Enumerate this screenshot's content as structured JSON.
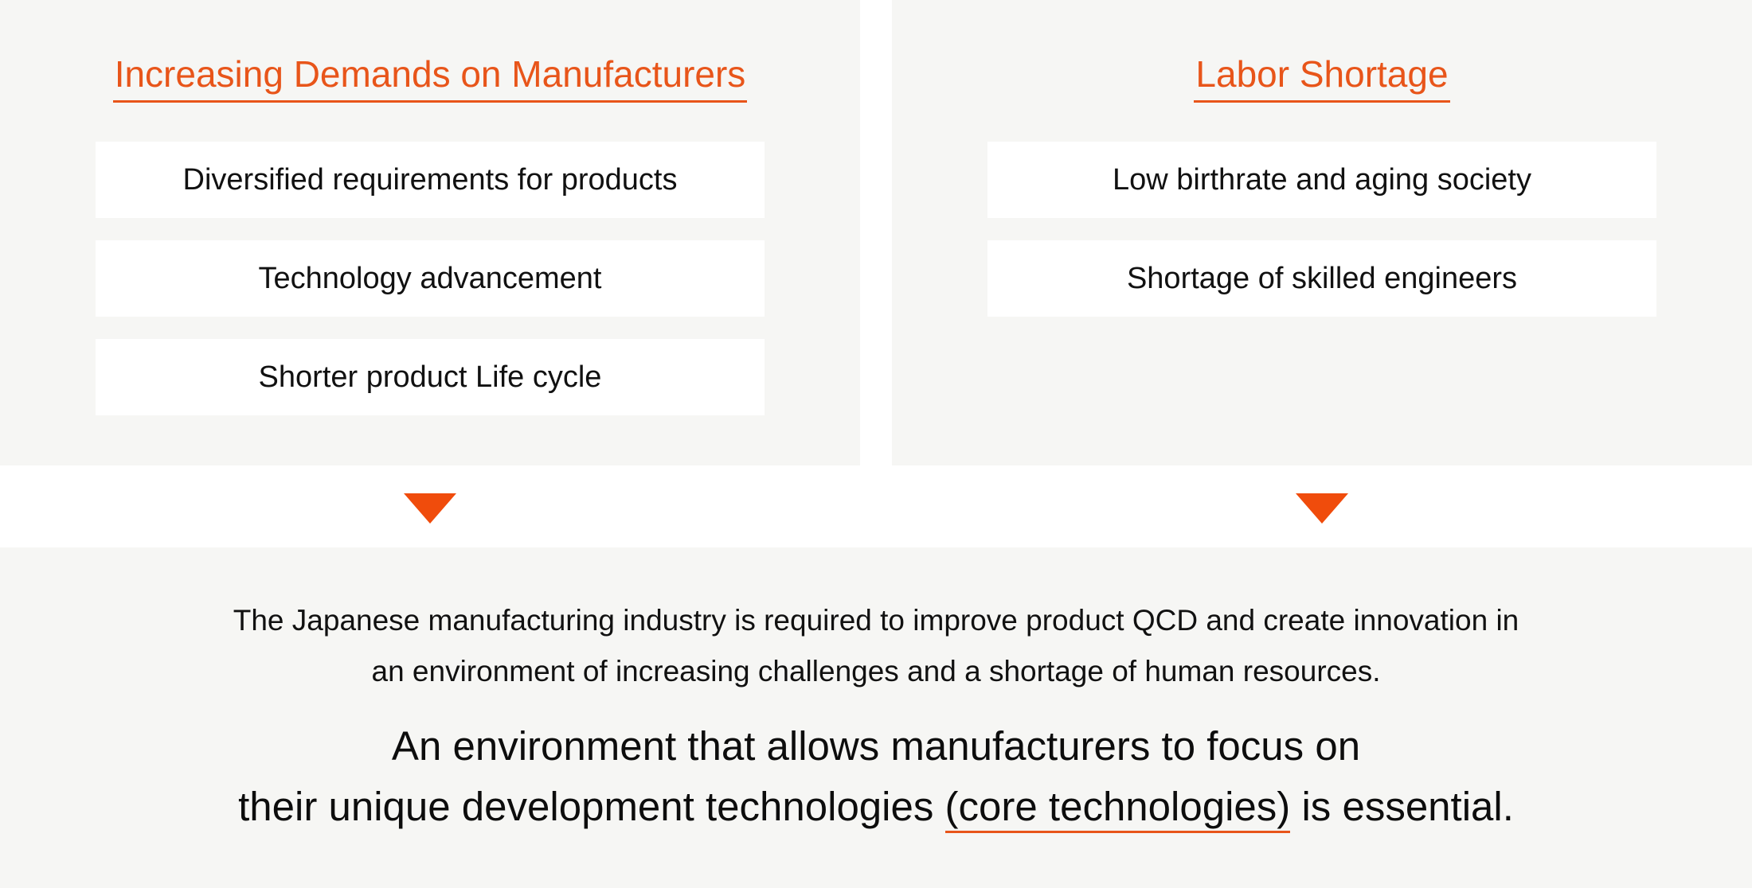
{
  "left_panel": {
    "title": "Increasing Demands on Manufacturers",
    "items": [
      "Diversified requirements for products",
      "Technology advancement",
      "Shorter product Life cycle"
    ]
  },
  "right_panel": {
    "title": "Labor Shortage",
    "items": [
      "Low birthrate and aging society",
      "Shortage of skilled engineers"
    ]
  },
  "summary": {
    "line1": "The Japanese manufacturing industry is required to improve product QCD and create innovation in",
    "line2": "an environment of increasing challenges and a shortage of human resources."
  },
  "conclusion": {
    "line1": "An environment that allows manufacturers to focus on",
    "line2_before": "their unique development technologies ",
    "line2_highlight": "(core technologies)",
    "line2_after": " is essential."
  },
  "colors": {
    "accent": "#e8551a",
    "arrow": "#f04c0c",
    "panel_bg": "#f6f6f4",
    "box_bg": "#ffffff"
  }
}
